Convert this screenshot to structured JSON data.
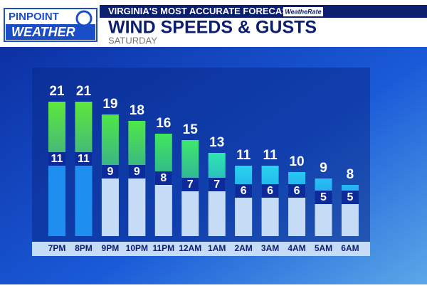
{
  "header": {
    "logo_top": "PINPOINT",
    "logo_bottom": "WEATHER",
    "tagline": "VIRGINIA'S MOST ACCURATE FORECAST",
    "badge": "WeatheRate"
  },
  "chart_data": {
    "type": "bar",
    "title": "WIND SPEEDS & GUSTS",
    "subtitle": "SATURDAY",
    "categories": [
      "7PM",
      "8PM",
      "9PM",
      "10PM",
      "11PM",
      "12AM",
      "1AM",
      "2AM",
      "3AM",
      "4AM",
      "5AM",
      "6AM"
    ],
    "series": [
      {
        "values": [
          21,
          21,
          19,
          18,
          16,
          15,
          13,
          11,
          11,
          10,
          9,
          8
        ],
        "colors": [
          "#5ee83a",
          "#5ee83a",
          "#4ee846",
          "#4ee846",
          "#3fe85a",
          "#3fe86a",
          "#2ee6b0",
          "#28d4f0",
          "#28d4f0",
          "#28c8f4",
          "#28c0f4",
          "#28b8f4"
        ]
      },
      {
        "values": [
          11,
          11,
          9,
          9,
          8,
          7,
          7,
          6,
          6,
          6,
          5,
          5
        ],
        "colors": [
          "#1e8ef0",
          "#1e8ef0",
          "#c6dbf6",
          "#c6dbf6",
          "#c6dbf6",
          "#c6dbf6",
          "#c6dbf6",
          "#c6dbf6",
          "#c6dbf6",
          "#c6dbf6",
          "#c6dbf6",
          "#c6dbf6"
        ]
      }
    ]
  }
}
